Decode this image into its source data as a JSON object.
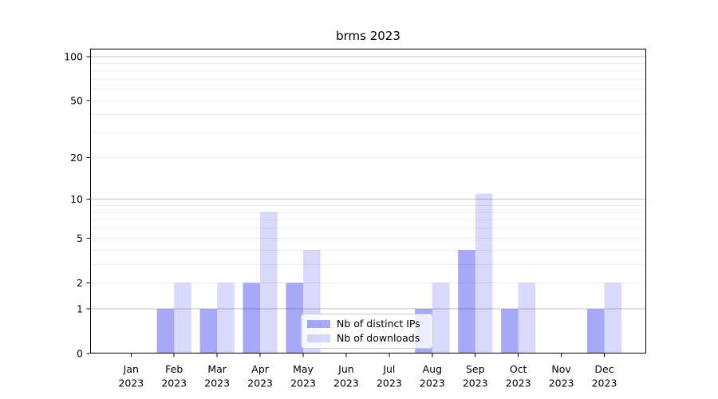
{
  "title": "brms 2023",
  "colors": {
    "bar_base": "#0000ee",
    "ips_composite": "#a8a8f8",
    "downloads_composite": "#d9d9f9",
    "grid_major": "#c3c3c3",
    "grid_minor": "#ececec",
    "spine": "#000000",
    "legend_border": "#cccccc"
  },
  "legend": {
    "position": "lower center",
    "items": [
      "Nb of distinct IPs",
      "Nb of downloads"
    ]
  },
  "chart_data": {
    "type": "bar",
    "title": "brms 2023",
    "xlabel": "",
    "ylabel": "",
    "categories": [
      "Jan 2023",
      "Feb 2023",
      "Mar 2023",
      "Apr 2023",
      "May 2023",
      "Jun 2023",
      "Jul 2023",
      "Aug 2023",
      "Sep 2023",
      "Oct 2023",
      "Nov 2023",
      "Dec 2023"
    ],
    "series": [
      {
        "name": "Nb of distinct IPs",
        "fill": "rgba(0,0,238,0.34)",
        "values": [
          0,
          1,
          1,
          2,
          2,
          0,
          0,
          1,
          4,
          1,
          0,
          1
        ]
      },
      {
        "name": "Nb of downloads",
        "fill": "rgba(0,0,238,0.15)",
        "values": [
          0,
          2,
          2,
          8,
          4,
          0,
          0,
          2,
          11,
          2,
          0,
          2
        ]
      }
    ],
    "y_axis": {
      "scale": "log1p",
      "ylim": [
        0,
        112
      ],
      "ticks": [
        100,
        50,
        20,
        10,
        5,
        2,
        1,
        0
      ],
      "major_gridlines": [
        1,
        10,
        100
      ],
      "minor_gridlines": [
        2,
        3,
        4,
        5,
        6,
        7,
        8,
        9,
        20,
        30,
        40,
        50,
        60,
        70,
        80,
        90
      ]
    },
    "grid": true,
    "legend_position": "lower center"
  }
}
